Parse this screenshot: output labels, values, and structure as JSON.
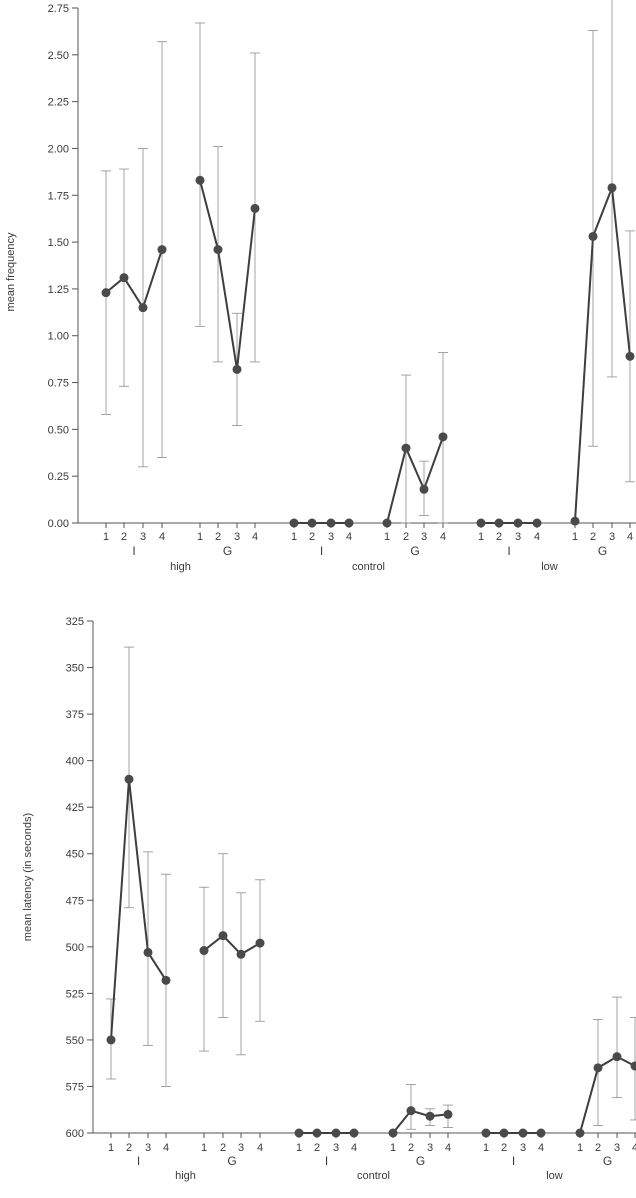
{
  "chart_data": [
    {
      "type": "line",
      "title": "",
      "ylabel": "mean frequency",
      "ylim": [
        0,
        2.75
      ],
      "yticks": [
        0.0,
        0.25,
        0.5,
        0.75,
        1.0,
        1.25,
        1.5,
        1.75,
        2.0,
        2.25,
        2.5,
        2.75
      ],
      "ytick_labels": [
        "0.00",
        "0.25",
        "0.50",
        "0.75",
        "1.00",
        "1.25",
        "1.50",
        "1.75",
        "2.00",
        "2.25",
        "2.50",
        "2.75"
      ],
      "groups": [
        {
          "name": "high",
          "subgroups": [
            {
              "name": "I",
              "x": [
                "1",
                "2",
                "3",
                "4"
              ],
              "values": [
                1.23,
                1.31,
                1.15,
                1.46
              ],
              "err_low": [
                0.58,
                0.73,
                0.3,
                0.35
              ],
              "err_high": [
                1.88,
                1.89,
                2.0,
                2.57
              ]
            },
            {
              "name": "G",
              "x": [
                "1",
                "2",
                "3",
                "4"
              ],
              "values": [
                1.83,
                1.46,
                0.82,
                1.68
              ],
              "err_low": [
                1.05,
                0.86,
                0.52,
                0.86
              ],
              "err_high": [
                2.67,
                2.01,
                1.12,
                2.51
              ]
            }
          ]
        },
        {
          "name": "control",
          "subgroups": [
            {
              "name": "I",
              "x": [
                "1",
                "2",
                "3",
                "4"
              ],
              "values": [
                0.0,
                0.0,
                0.0,
                0.0
              ],
              "err_low": [
                0.0,
                0.0,
                0.0,
                0.0
              ],
              "err_high": [
                0.0,
                0.0,
                0.0,
                0.0
              ]
            },
            {
              "name": "G",
              "x": [
                "1",
                "2",
                "3",
                "4"
              ],
              "values": [
                0.0,
                0.4,
                0.18,
                0.46
              ],
              "err_low": [
                0.0,
                0.0,
                0.04,
                0.0
              ],
              "err_high": [
                0.0,
                0.79,
                0.33,
                0.91
              ]
            }
          ]
        },
        {
          "name": "low",
          "subgroups": [
            {
              "name": "I",
              "x": [
                "1",
                "2",
                "3",
                "4"
              ],
              "values": [
                0.0,
                0.0,
                0.0,
                0.0
              ],
              "err_low": [
                0.0,
                0.0,
                0.0,
                0.0
              ],
              "err_high": [
                0.0,
                0.0,
                0.0,
                0.0
              ]
            },
            {
              "name": "G",
              "x": [
                "1",
                "2",
                "3",
                "4"
              ],
              "values": [
                0.01,
                1.53,
                1.79,
                0.89
              ],
              "err_low": [
                0.0,
                0.41,
                0.78,
                0.22
              ],
              "err_high": [
                0.0,
                2.63,
                2.8,
                1.56
              ]
            }
          ]
        }
      ]
    },
    {
      "type": "line",
      "title": "",
      "ylabel": "mean latency (in seconds)",
      "ylim": [
        600,
        325
      ],
      "y_inverted": true,
      "yticks": [
        325,
        350,
        375,
        400,
        425,
        450,
        475,
        500,
        525,
        550,
        575,
        600
      ],
      "ytick_labels": [
        "325",
        "350",
        "375",
        "400",
        "425",
        "450",
        "475",
        "500",
        "525",
        "550",
        "575",
        "600"
      ],
      "groups": [
        {
          "name": "high",
          "subgroups": [
            {
              "name": "I",
              "x": [
                "1",
                "2",
                "3",
                "4"
              ],
              "values": [
                550,
                410,
                503,
                518
              ],
              "err_low": [
                571,
                479,
                553,
                575
              ],
              "err_high": [
                528,
                339,
                449,
                461
              ]
            },
            {
              "name": "G",
              "x": [
                "1",
                "2",
                "3",
                "4"
              ],
              "values": [
                502,
                494,
                504,
                498
              ],
              "err_low": [
                556,
                538,
                558,
                540
              ],
              "err_high": [
                468,
                450,
                471,
                464
              ]
            }
          ]
        },
        {
          "name": "control",
          "subgroups": [
            {
              "name": "I",
              "x": [
                "1",
                "2",
                "3",
                "4"
              ],
              "values": [
                600,
                600,
                600,
                600
              ],
              "err_low": [
                600,
                600,
                600,
                600
              ],
              "err_high": [
                600,
                600,
                600,
                600
              ]
            },
            {
              "name": "G",
              "x": [
                "1",
                "2",
                "3",
                "4"
              ],
              "values": [
                600,
                588,
                591,
                590
              ],
              "err_low": [
                600,
                598,
                596,
                597
              ],
              "err_high": [
                600,
                574,
                587,
                585
              ]
            }
          ]
        },
        {
          "name": "low",
          "subgroups": [
            {
              "name": "I",
              "x": [
                "1",
                "2",
                "3",
                "4"
              ],
              "values": [
                600,
                600,
                600,
                600
              ],
              "err_low": [
                600,
                600,
                600,
                600
              ],
              "err_high": [
                600,
                600,
                600,
                600
              ]
            },
            {
              "name": "G",
              "x": [
                "1",
                "2",
                "3",
                "4"
              ],
              "values": [
                600,
                565,
                559,
                564
              ],
              "err_low": [
                600,
                596,
                581,
                593
              ],
              "err_high": [
                600,
                539,
                527,
                538
              ]
            }
          ]
        }
      ]
    }
  ]
}
